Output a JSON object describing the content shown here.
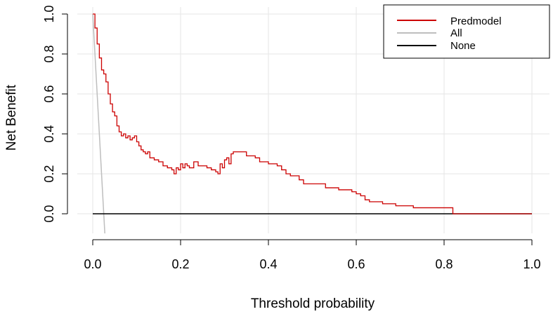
{
  "chart_data": {
    "type": "line",
    "xlabel": "Threshold probability",
    "ylabel": "Net Benefit",
    "xlim": [
      0.0,
      1.0
    ],
    "ylim": [
      -0.1,
      1.0
    ],
    "x_ticks": [
      "0.0",
      "0.2",
      "0.4",
      "0.6",
      "0.8",
      "1.0"
    ],
    "y_ticks": [
      "0.0",
      "0.2",
      "0.4",
      "0.6",
      "0.8",
      "1.0"
    ],
    "grid": true,
    "legend_position": "top-right",
    "series": [
      {
        "name": "Predmodel",
        "color": "#cc0000",
        "step": true,
        "points": [
          [
            0.0,
            1.0
          ],
          [
            0.005,
            0.93
          ],
          [
            0.01,
            0.85
          ],
          [
            0.015,
            0.78
          ],
          [
            0.02,
            0.72
          ],
          [
            0.025,
            0.7
          ],
          [
            0.03,
            0.66
          ],
          [
            0.035,
            0.6
          ],
          [
            0.04,
            0.55
          ],
          [
            0.045,
            0.51
          ],
          [
            0.05,
            0.49
          ],
          [
            0.055,
            0.44
          ],
          [
            0.06,
            0.41
          ],
          [
            0.065,
            0.39
          ],
          [
            0.07,
            0.4
          ],
          [
            0.075,
            0.38
          ],
          [
            0.08,
            0.39
          ],
          [
            0.085,
            0.37
          ],
          [
            0.09,
            0.38
          ],
          [
            0.095,
            0.39
          ],
          [
            0.1,
            0.36
          ],
          [
            0.105,
            0.34
          ],
          [
            0.11,
            0.32
          ],
          [
            0.115,
            0.31
          ],
          [
            0.12,
            0.3
          ],
          [
            0.125,
            0.31
          ],
          [
            0.13,
            0.28
          ],
          [
            0.14,
            0.27
          ],
          [
            0.15,
            0.26
          ],
          [
            0.16,
            0.24
          ],
          [
            0.17,
            0.23
          ],
          [
            0.18,
            0.22
          ],
          [
            0.185,
            0.2
          ],
          [
            0.19,
            0.23
          ],
          [
            0.195,
            0.22
          ],
          [
            0.2,
            0.25
          ],
          [
            0.205,
            0.23
          ],
          [
            0.21,
            0.25
          ],
          [
            0.215,
            0.24
          ],
          [
            0.22,
            0.23
          ],
          [
            0.23,
            0.26
          ],
          [
            0.24,
            0.24
          ],
          [
            0.25,
            0.24
          ],
          [
            0.26,
            0.23
          ],
          [
            0.27,
            0.22
          ],
          [
            0.28,
            0.21
          ],
          [
            0.285,
            0.2
          ],
          [
            0.29,
            0.25
          ],
          [
            0.295,
            0.23
          ],
          [
            0.3,
            0.27
          ],
          [
            0.305,
            0.28
          ],
          [
            0.31,
            0.25
          ],
          [
            0.315,
            0.3
          ],
          [
            0.32,
            0.31
          ],
          [
            0.34,
            0.31
          ],
          [
            0.35,
            0.29
          ],
          [
            0.37,
            0.28
          ],
          [
            0.38,
            0.26
          ],
          [
            0.4,
            0.25
          ],
          [
            0.42,
            0.24
          ],
          [
            0.43,
            0.22
          ],
          [
            0.44,
            0.2
          ],
          [
            0.45,
            0.19
          ],
          [
            0.47,
            0.17
          ],
          [
            0.48,
            0.15
          ],
          [
            0.52,
            0.15
          ],
          [
            0.53,
            0.13
          ],
          [
            0.56,
            0.12
          ],
          [
            0.58,
            0.12
          ],
          [
            0.59,
            0.11
          ],
          [
            0.6,
            0.1
          ],
          [
            0.61,
            0.09
          ],
          [
            0.62,
            0.07
          ],
          [
            0.63,
            0.06
          ],
          [
            0.66,
            0.05
          ],
          [
            0.69,
            0.04
          ],
          [
            0.73,
            0.03
          ],
          [
            0.76,
            0.03
          ],
          [
            0.82,
            0.02
          ],
          [
            0.82,
            0.0
          ],
          [
            1.0,
            0.0
          ]
        ]
      },
      {
        "name": "All",
        "color": "#bebebe",
        "step": false,
        "points": [
          [
            0.0,
            1.0
          ],
          [
            0.0275,
            -0.1
          ]
        ]
      },
      {
        "name": "None",
        "color": "#000000",
        "step": false,
        "points": [
          [
            0.0,
            0.0
          ],
          [
            1.0,
            0.0
          ]
        ]
      }
    ]
  }
}
